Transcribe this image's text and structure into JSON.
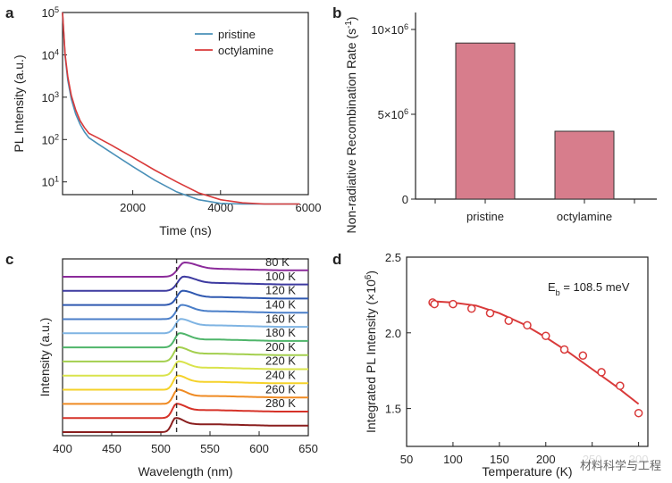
{
  "watermark": "材料科学与工程",
  "chart_data": [
    {
      "panel": "a",
      "type": "line",
      "xlabel": "Time (ns)",
      "ylabel": "PL Intensity (a.u.)",
      "xlim": [
        400,
        6000
      ],
      "ylim_log": [
        5,
        100000
      ],
      "y_scale": "log",
      "x_ticks": [
        2000,
        4000,
        6000
      ],
      "x_tick_labels": [
        "2000",
        "4000",
        "6000"
      ],
      "y_ticks": [
        10,
        100,
        1000,
        10000,
        100000
      ],
      "y_tick_labels": [
        {
          "base": "10",
          "exp": "1"
        },
        {
          "base": "10",
          "exp": "2"
        },
        {
          "base": "10",
          "exp": "3"
        },
        {
          "base": "10",
          "exp": "4"
        },
        {
          "base": "10",
          "exp": "5"
        }
      ],
      "legend_position": "top-right",
      "series": [
        {
          "name": "pristine",
          "color": "#4a90b8",
          "x": [
            400,
            460,
            520,
            600,
            700,
            800,
            900,
            1000,
            1200,
            1500,
            2000,
            2500,
            3000,
            3500,
            4000,
            4500,
            5000,
            5500,
            5800
          ],
          "y": [
            100000,
            9000,
            2500,
            900,
            400,
            230,
            150,
            110,
            80,
            50,
            23,
            11,
            5.8,
            3.8,
            3.1,
            3.0,
            3.0,
            3.0,
            3.0
          ]
        },
        {
          "name": "octylamine",
          "color": "#d93a3a",
          "x": [
            400,
            460,
            520,
            600,
            700,
            800,
            900,
            1000,
            1200,
            1500,
            2000,
            2500,
            3000,
            3500,
            4000,
            4500,
            5000,
            5500,
            5800
          ],
          "y": [
            100000,
            10000,
            3000,
            1100,
            500,
            280,
            190,
            140,
            110,
            75,
            38,
            19,
            10,
            5.5,
            3.8,
            3.2,
            3.0,
            3.0,
            3.0
          ]
        }
      ]
    },
    {
      "panel": "b",
      "type": "bar",
      "ylabel": "Non-radiative Recombination Rate (s",
      "ylabel_exp": "-1",
      "ylabel_close": ")",
      "categories": [
        "pristine",
        "octylamine"
      ],
      "values": [
        9200000,
        4000000
      ],
      "ylim": [
        0,
        11000000
      ],
      "y_ticks": [
        0,
        5000000,
        10000000
      ],
      "y_tick_labels": [
        {
          "base": "0",
          "exp": ""
        },
        {
          "base": "5×10",
          "exp": "6"
        },
        {
          "base": "10×10",
          "exp": "6"
        }
      ],
      "bar_color": "#d77d8c"
    },
    {
      "panel": "c",
      "type": "line",
      "xlabel": "Wavelength (nm)",
      "ylabel": "Intensity (a.u.)",
      "xlim": [
        400,
        650
      ],
      "x_ticks": [
        400,
        450,
        500,
        550,
        600,
        650
      ],
      "x_tick_labels": [
        "400",
        "450",
        "500",
        "550",
        "600",
        "650"
      ],
      "reference_line_nm": 516,
      "curves": [
        {
          "label": "80 K",
          "color": "#8b2a9a",
          "peak_nm": 524,
          "width_nm": 16
        },
        {
          "label": "100 K",
          "color": "#3d3aa0",
          "peak_nm": 523,
          "width_nm": 15
        },
        {
          "label": "120 K",
          "color": "#2f58b0",
          "peak_nm": 522,
          "width_nm": 14
        },
        {
          "label": "140 K",
          "color": "#4a7ec8",
          "peak_nm": 521,
          "width_nm": 13
        },
        {
          "label": "160 K",
          "color": "#7fb4e3",
          "peak_nm": 520,
          "width_nm": 13
        },
        {
          "label": "180 K",
          "color": "#4fb56a",
          "peak_nm": 519,
          "width_nm": 12
        },
        {
          "label": "200 K",
          "color": "#a3cf4e",
          "peak_nm": 518,
          "width_nm": 12
        },
        {
          "label": "220 K",
          "color": "#d9e34b",
          "peak_nm": 518,
          "width_nm": 12
        },
        {
          "label": "240 K",
          "color": "#f5d22a",
          "peak_nm": 517,
          "width_nm": 11
        },
        {
          "label": "260 K",
          "color": "#ef8a22",
          "peak_nm": 517,
          "width_nm": 11
        },
        {
          "label": "280 K",
          "color": "#d63228",
          "peak_nm": 516,
          "width_nm": 11
        },
        {
          "label": "",
          "color": "#8a1e1e",
          "peak_nm": 515,
          "width_nm": 10
        }
      ]
    },
    {
      "panel": "d",
      "type": "scatter",
      "xlabel": "Temperature (K)",
      "ylabel": "Integrated PL Intensity (×10",
      "ylabel_exp": "6",
      "ylabel_close": ")",
      "annotation": {
        "base": "E",
        "sub": "b",
        "rest": " = 108.5 meV"
      },
      "xlim": [
        50,
        310
      ],
      "ylim": [
        1.25,
        2.5
      ],
      "x_ticks": [
        50,
        100,
        150,
        200,
        250,
        300
      ],
      "x_tick_labels": [
        "50",
        "100",
        "150",
        "200",
        "250",
        "300"
      ],
      "y_ticks": [
        1.5,
        2.0,
        2.5
      ],
      "y_tick_labels": [
        "1.5",
        "2.0",
        "2.5"
      ],
      "marker_color": "#d93a3a",
      "fit_color": "#d93a3a",
      "points": {
        "x": [
          78,
          80,
          100,
          120,
          140,
          160,
          180,
          200,
          220,
          240,
          260,
          280,
          300
        ],
        "y": [
          2.2,
          2.19,
          2.19,
          2.16,
          2.13,
          2.08,
          2.05,
          1.98,
          1.89,
          1.85,
          1.74,
          1.65,
          1.47
        ]
      },
      "fit": {
        "x": [
          75,
          100,
          125,
          150,
          175,
          200,
          225,
          250,
          275,
          300
        ],
        "y": [
          2.21,
          2.2,
          2.18,
          2.13,
          2.06,
          1.97,
          1.87,
          1.76,
          1.65,
          1.53
        ]
      }
    }
  ]
}
